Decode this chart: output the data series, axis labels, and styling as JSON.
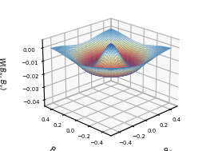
{
  "xlabel": "$B_x$",
  "ylabel": "$B_y$",
  "zlabel": "$W(B_x, B_y)$",
  "B_range": 0.46,
  "grid_resolution": 60,
  "sigma2": 0.022,
  "amplitude": -0.042,
  "spike_sigma2": 0.003,
  "spike_amp": 0.018,
  "zlim_min": -0.045,
  "zlim_max": 0.006,
  "xlim": [
    -0.52,
    0.52
  ],
  "ylim": [
    -0.52,
    0.52
  ],
  "xticks": [
    -0.4,
    -0.2,
    0,
    0.2,
    0.4
  ],
  "yticks": [
    -0.4,
    -0.2,
    0,
    0.2,
    0.4
  ],
  "zticks": [
    0,
    -0.01,
    -0.02,
    -0.03,
    -0.04
  ],
  "background_color": "#ffffff",
  "elev": 22,
  "azim": 225
}
